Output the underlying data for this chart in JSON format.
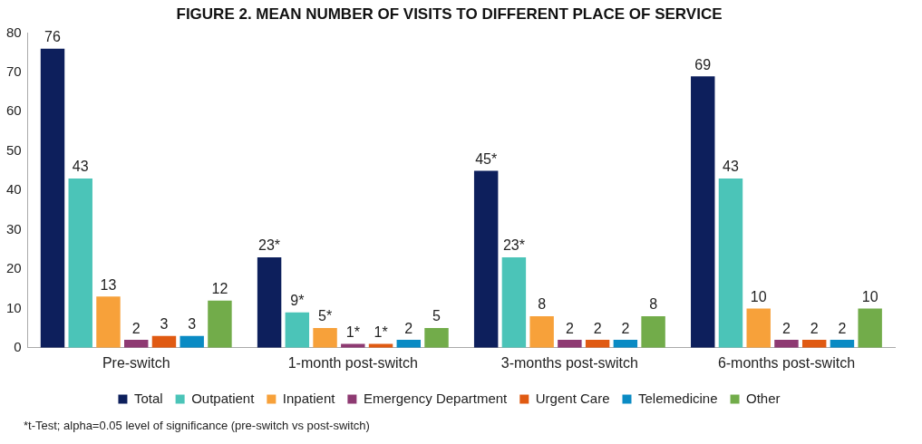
{
  "chart_data": {
    "type": "bar",
    "title": "FIGURE 2. MEAN NUMBER OF VISITS TO DIFFERENT PLACE OF SERVICE",
    "categories": [
      "Pre-switch",
      "1-month post-switch",
      "3-months post-switch",
      "6-months post-switch"
    ],
    "series": [
      {
        "name": "Total",
        "color": "#0d1f5c",
        "values": [
          76,
          23,
          45,
          69
        ],
        "value_labels": [
          "76",
          "23*",
          "45*",
          "69"
        ]
      },
      {
        "name": "Outpatient",
        "color": "#4bc4b8",
        "values": [
          43,
          9,
          23,
          43
        ],
        "value_labels": [
          "43",
          "9*",
          "23*",
          "43"
        ]
      },
      {
        "name": "Inpatient",
        "color": "#f7a13a",
        "values": [
          13,
          5,
          8,
          10
        ],
        "value_labels": [
          "13",
          "5*",
          "8",
          "10"
        ]
      },
      {
        "name": "Emergency Department",
        "color": "#8e3a72",
        "values": [
          2,
          1,
          2,
          2
        ],
        "value_labels": [
          "2",
          "1*",
          "2",
          "2"
        ]
      },
      {
        "name": "Urgent Care",
        "color": "#e05a12",
        "values": [
          3,
          1,
          2,
          2
        ],
        "value_labels": [
          "3",
          "1*",
          "2",
          "2"
        ]
      },
      {
        "name": "Telemedicine",
        "color": "#0a8bc4",
        "values": [
          3,
          2,
          2,
          2
        ],
        "value_labels": [
          "3",
          "2",
          "2",
          "2"
        ]
      },
      {
        "name": "Other",
        "color": "#72ac4a",
        "values": [
          12,
          5,
          8,
          10
        ],
        "value_labels": [
          "12",
          "5",
          "8",
          "10"
        ]
      }
    ],
    "ylim": [
      0,
      80
    ],
    "yticks": [
      0,
      10,
      20,
      30,
      40,
      50,
      60,
      70,
      80
    ],
    "grid": false,
    "legend": "bottom",
    "annotations": [
      "*t-Test; alpha=0.05 level of significance (pre-switch vs post-switch)"
    ]
  }
}
